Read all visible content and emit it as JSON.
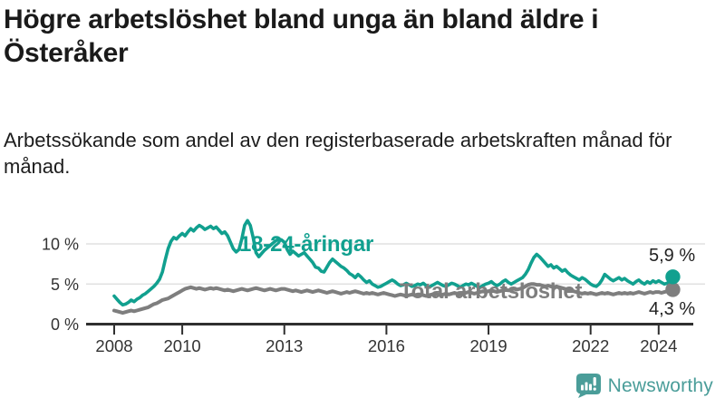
{
  "branding": {
    "name": "Newsworthy",
    "icon": "newsworthy-logo-icon",
    "color": "#4a9d99"
  },
  "colors": {
    "youth_line": "#11a08f",
    "total_line": "#7e7e7e",
    "grid": "#e0e0e0",
    "axis": "#2f2f2f",
    "tick_text": "#333333",
    "title_text": "#1a1a1a",
    "value_text": "#222222",
    "background": "#ffffff"
  },
  "chart_data": {
    "type": "line",
    "title": "Högre arbetslöshet bland unga än bland äldre i Österåker",
    "subtitle": "Arbetssökande som andel av den registerbaserade arbetskraften månad för månad.",
    "x_unit": "month",
    "x_start": "2008-01",
    "x_end": "2024-06",
    "x_ticks": [
      2008,
      2010,
      2013,
      2016,
      2019,
      2022,
      2024
    ],
    "y_ticks": [
      0,
      5,
      10
    ],
    "y_tick_suffix": " %",
    "ylim": [
      0,
      13.5
    ],
    "grid": "horizontal",
    "legend": "inline-labels",
    "series": [
      {
        "name": "18-24-åringar",
        "color": "#11a08f",
        "end_label": "5,9 %",
        "end_value": 5.9,
        "values": [
          3.5,
          3.1,
          2.7,
          2.4,
          2.5,
          2.7,
          3.0,
          2.8,
          3.1,
          3.3,
          3.6,
          3.8,
          4.1,
          4.4,
          4.7,
          5.1,
          5.6,
          6.5,
          8.0,
          9.4,
          10.3,
          10.8,
          10.6,
          11.0,
          11.3,
          11.0,
          11.5,
          11.9,
          11.6,
          12.0,
          12.3,
          12.1,
          11.8,
          12.0,
          12.2,
          11.9,
          12.1,
          11.7,
          11.3,
          11.5,
          11.0,
          10.2,
          9.4,
          9.0,
          9.3,
          10.6,
          12.3,
          12.9,
          12.3,
          10.8,
          8.9,
          8.4,
          8.8,
          9.2,
          9.5,
          9.8,
          10.1,
          10.4,
          10.6,
          10.5,
          10.2,
          9.3,
          8.7,
          9.1,
          8.8,
          8.5,
          8.7,
          8.9,
          8.5,
          8.1,
          7.7,
          7.1,
          7.0,
          6.6,
          6.5,
          7.1,
          7.7,
          8.1,
          7.8,
          7.5,
          7.2,
          7.0,
          6.7,
          6.3,
          6.1,
          5.8,
          6.2,
          5.9,
          5.5,
          5.2,
          5.4,
          5.0,
          4.8,
          4.6,
          4.7,
          4.9,
          5.1,
          5.3,
          5.5,
          5.3,
          5.0,
          4.8,
          4.9,
          5.1,
          4.9,
          4.7,
          4.8,
          5.0,
          4.9,
          5.1,
          4.8,
          4.6,
          4.8,
          5.0,
          5.2,
          5.0,
          4.8,
          4.7,
          4.9,
          5.1,
          5.0,
          4.8,
          4.6,
          4.8,
          5.0,
          4.9,
          5.1,
          4.9,
          4.7,
          4.6,
          4.8,
          5.0,
          5.1,
          5.3,
          5.0,
          4.8,
          5.0,
          5.3,
          5.5,
          5.2,
          5.0,
          5.2,
          5.4,
          5.6,
          5.8,
          6.2,
          6.8,
          7.6,
          8.3,
          8.7,
          8.4,
          8.0,
          7.6,
          7.2,
          7.4,
          7.0,
          7.2,
          6.9,
          6.6,
          6.8,
          6.4,
          6.1,
          5.9,
          5.7,
          5.5,
          5.8,
          5.6,
          5.3,
          5.0,
          4.8,
          4.7,
          5.0,
          5.5,
          6.2,
          5.9,
          5.6,
          5.4,
          5.6,
          5.8,
          5.5,
          5.7,
          5.4,
          5.2,
          5.0,
          5.3,
          5.5,
          5.2,
          5.0,
          5.3,
          5.1,
          5.4,
          5.2,
          5.4,
          5.2,
          5.0,
          5.1,
          5.4,
          5.9
        ]
      },
      {
        "name": "Total arbetslöshet",
        "color": "#7e7e7e",
        "end_label": "4,3 %",
        "end_value": 4.3,
        "values": [
          1.7,
          1.6,
          1.5,
          1.4,
          1.5,
          1.6,
          1.7,
          1.6,
          1.7,
          1.8,
          1.9,
          2.0,
          2.1,
          2.3,
          2.5,
          2.6,
          2.8,
          3.0,
          3.1,
          3.2,
          3.4,
          3.6,
          3.8,
          4.0,
          4.2,
          4.4,
          4.5,
          4.6,
          4.5,
          4.4,
          4.5,
          4.4,
          4.3,
          4.4,
          4.5,
          4.4,
          4.5,
          4.4,
          4.3,
          4.2,
          4.3,
          4.2,
          4.1,
          4.2,
          4.3,
          4.4,
          4.3,
          4.2,
          4.3,
          4.4,
          4.5,
          4.4,
          4.3,
          4.2,
          4.3,
          4.4,
          4.3,
          4.2,
          4.3,
          4.4,
          4.4,
          4.3,
          4.2,
          4.1,
          4.2,
          4.1,
          4.0,
          4.1,
          4.2,
          4.1,
          4.0,
          4.1,
          4.2,
          4.1,
          4.0,
          3.9,
          4.0,
          4.1,
          4.0,
          3.9,
          3.8,
          3.9,
          4.0,
          3.9,
          4.0,
          4.1,
          4.0,
          3.9,
          3.8,
          3.9,
          3.8,
          3.9,
          3.8,
          3.7,
          3.8,
          3.9,
          3.8,
          3.7,
          3.6,
          3.5,
          3.6,
          3.7,
          3.6,
          3.5,
          3.6,
          3.7,
          3.6,
          3.7,
          3.7,
          3.6,
          3.5,
          3.6,
          3.7,
          3.8,
          3.7,
          3.6,
          3.7,
          3.8,
          3.7,
          3.8,
          3.9,
          3.8,
          3.7,
          3.8,
          3.9,
          4.0,
          3.9,
          3.8,
          3.9,
          4.0,
          4.1,
          4.0,
          4.1,
          4.2,
          4.1,
          4.0,
          4.1,
          4.2,
          4.3,
          4.2,
          4.3,
          4.4,
          4.3,
          4.4,
          4.5,
          4.7,
          4.9,
          5.0,
          5.0,
          4.9,
          4.9,
          4.8,
          4.7,
          4.8,
          4.7,
          4.6,
          4.7,
          4.6,
          4.5,
          4.4,
          4.3,
          4.2,
          4.1,
          4.0,
          3.9,
          3.8,
          3.9,
          3.8,
          3.9,
          3.8,
          3.7,
          3.8,
          3.9,
          3.8,
          3.9,
          3.8,
          3.7,
          3.8,
          3.9,
          3.8,
          3.9,
          3.8,
          3.9,
          3.8,
          3.9,
          4.0,
          3.9,
          3.8,
          3.9,
          4.0,
          3.9,
          4.0,
          4.0,
          3.9,
          4.0,
          4.1,
          4.2,
          4.3
        ]
      }
    ]
  }
}
